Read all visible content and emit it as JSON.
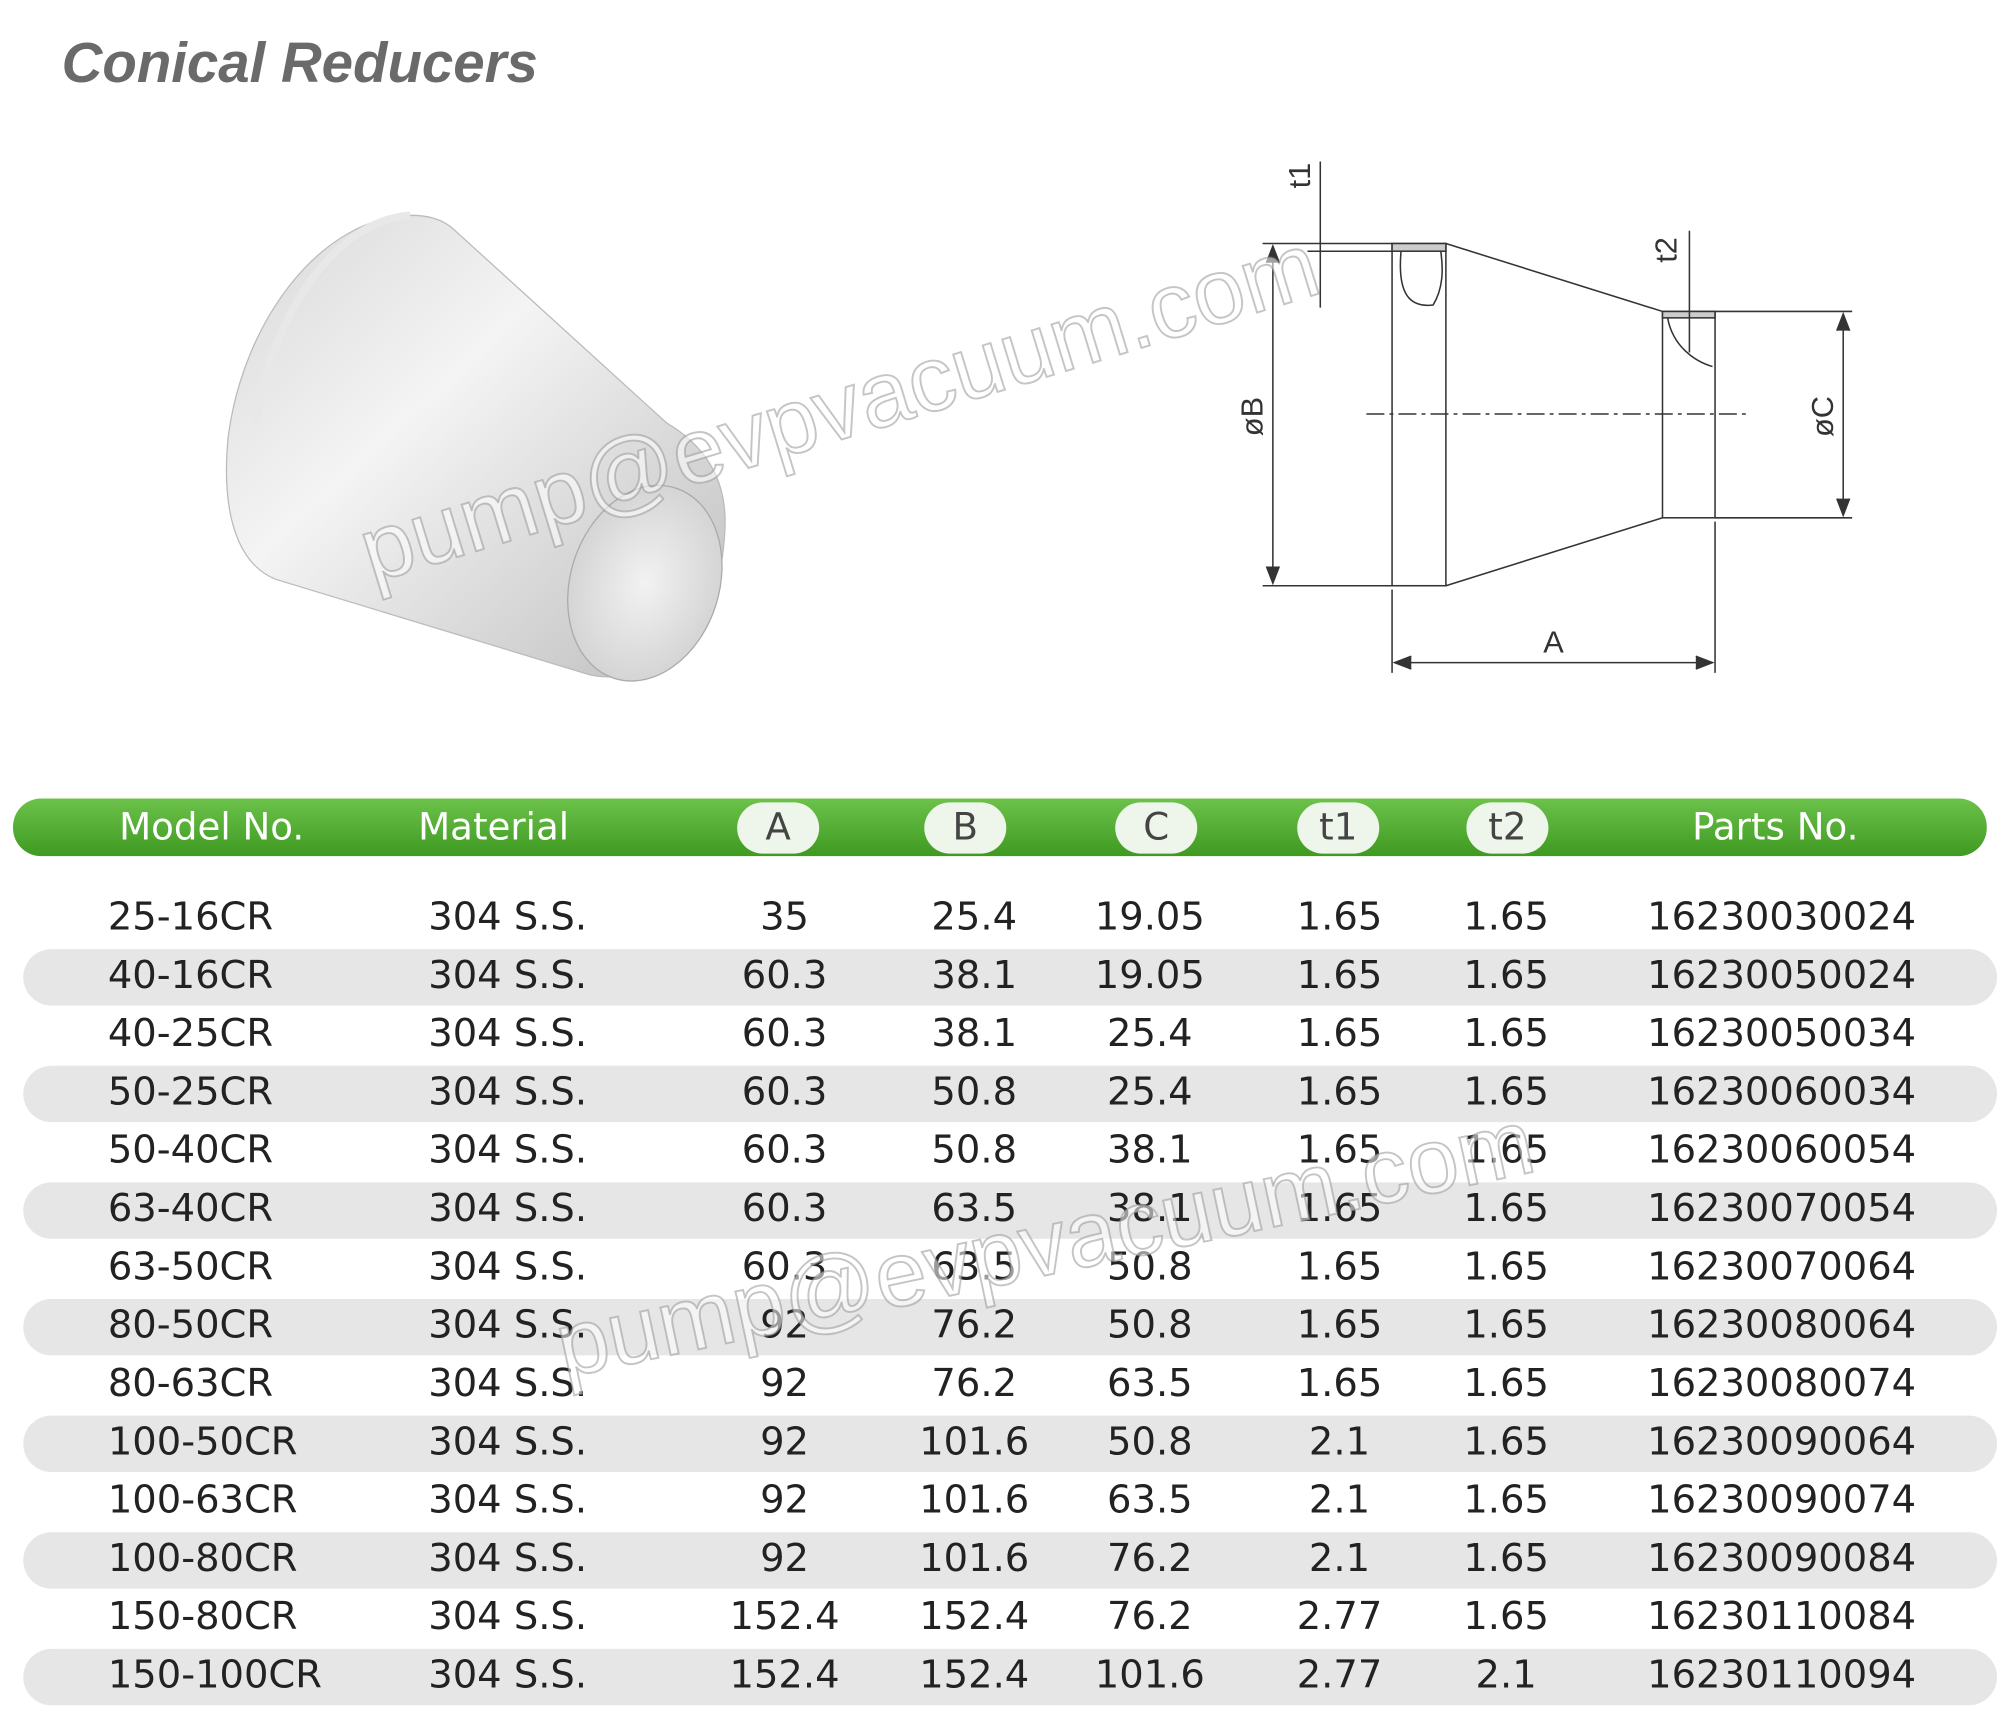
{
  "header": {
    "title": "Conical Reducers"
  },
  "diagram": {
    "t1": "t1",
    "t2": "t2",
    "diameter_b": "øB",
    "diameter_c": "øC",
    "length_a": "A"
  },
  "watermark": "pump@evpvacuum.com",
  "table": {
    "columns": [
      "Model  No.",
      "Material",
      "A",
      "B",
      "C",
      "t1",
      "t2",
      "Parts No."
    ],
    "rows": [
      [
        "25-16CR",
        "304 S.S.",
        "35",
        "25.4",
        "19.05",
        "1.65",
        "1.65",
        "16230030024"
      ],
      [
        "40-16CR",
        "304 S.S.",
        "60.3",
        "38.1",
        "19.05",
        "1.65",
        "1.65",
        "16230050024"
      ],
      [
        "40-25CR",
        "304 S.S.",
        "60.3",
        "38.1",
        "25.4",
        "1.65",
        "1.65",
        "16230050034"
      ],
      [
        "50-25CR",
        "304 S.S.",
        "60.3",
        "50.8",
        "25.4",
        "1.65",
        "1.65",
        "16230060034"
      ],
      [
        "50-40CR",
        "304 S.S.",
        "60.3",
        "50.8",
        "38.1",
        "1.65",
        "1.65",
        "16230060054"
      ],
      [
        "63-40CR",
        "304 S.S.",
        "60.3",
        "63.5",
        "38.1",
        "1.65",
        "1.65",
        "16230070054"
      ],
      [
        "63-50CR",
        "304 S.S.",
        "60.3",
        "63.5",
        "50.8",
        "1.65",
        "1.65",
        "16230070064"
      ],
      [
        "80-50CR",
        "304 S.S.",
        "92",
        "76.2",
        "50.8",
        "1.65",
        "1.65",
        "16230080064"
      ],
      [
        "80-63CR",
        "304 S.S.",
        "92",
        "76.2",
        "63.5",
        "1.65",
        "1.65",
        "16230080074"
      ],
      [
        "100-50CR",
        "304 S.S.",
        "92",
        "101.6",
        "50.8",
        "2.1",
        "1.65",
        "16230090064"
      ],
      [
        "100-63CR",
        "304 S.S.",
        "92",
        "101.6",
        "63.5",
        "2.1",
        "1.65",
        "16230090074"
      ],
      [
        "100-80CR",
        "304 S.S.",
        "92",
        "101.6",
        "76.2",
        "2.1",
        "1.65",
        "16230090084"
      ],
      [
        "150-80CR",
        "304 S.S.",
        "152.4",
        "152.4",
        "76.2",
        "2.77",
        "1.65",
        "16230110084"
      ],
      [
        "150-100CR",
        "304 S.S.",
        "152.4",
        "152.4",
        "101.6",
        "2.77",
        "2.1",
        "16230110094"
      ]
    ]
  }
}
